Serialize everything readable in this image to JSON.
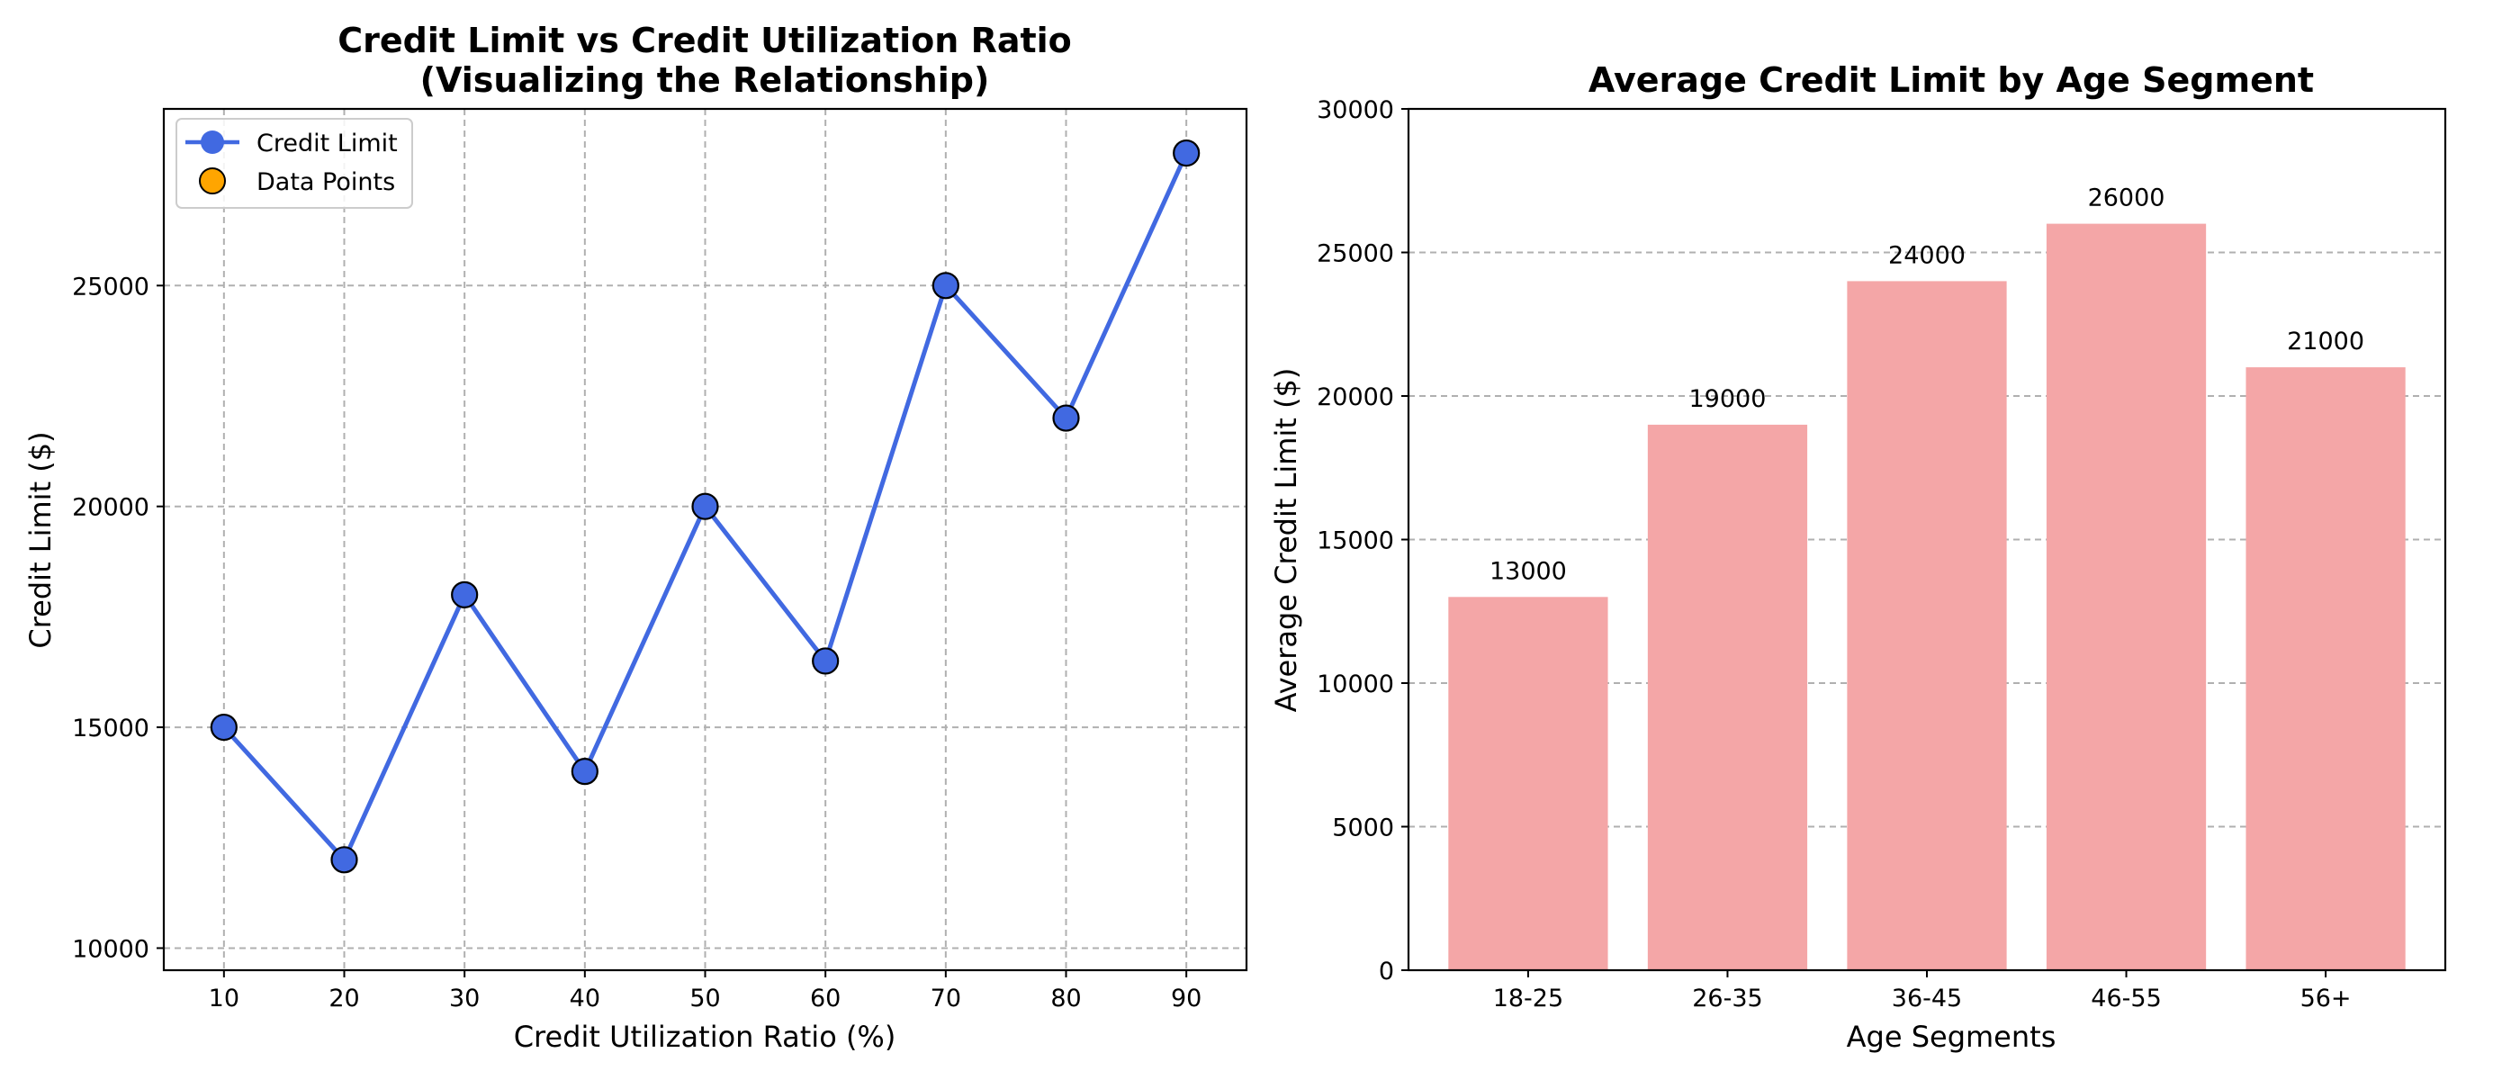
{
  "chart_data": [
    {
      "type": "line",
      "title_lines": [
        "Credit Limit vs Credit Utilization Ratio",
        "(Visualizing the Relationship)"
      ],
      "xlabel": "Credit Utilization Ratio (%)",
      "ylabel": "Credit Limit ($)",
      "x": [
        10,
        20,
        30,
        40,
        50,
        60,
        70,
        80,
        90
      ],
      "y": [
        15000,
        12000,
        18000,
        14000,
        20000,
        16500,
        25000,
        22000,
        28000
      ],
      "xlim": [
        5,
        95
      ],
      "ylim": [
        9500,
        29000
      ],
      "xticks": [
        10,
        20,
        30,
        40,
        50,
        60,
        70,
        80,
        90
      ],
      "yticks": [
        10000,
        15000,
        20000,
        25000
      ],
      "grid": true,
      "legend_position": "upper-left",
      "legend": [
        {
          "label": "Credit Limit",
          "kind": "line-marker",
          "color": "#4169e1"
        },
        {
          "label": "Data Points",
          "kind": "marker",
          "color": "#ffa500"
        }
      ],
      "line_color": "#4169e1",
      "marker_edge_color": "#000000"
    },
    {
      "type": "bar",
      "title": "Average Credit Limit by Age Segment",
      "xlabel": "Age Segments",
      "ylabel": "Average Credit Limit ($)",
      "categories": [
        "18-25",
        "26-35",
        "36-45",
        "46-55",
        "56+"
      ],
      "values": [
        13000,
        19000,
        24000,
        26000,
        21000
      ],
      "ylim": [
        0,
        30000
      ],
      "yticks": [
        0,
        5000,
        10000,
        15000,
        20000,
        25000,
        30000
      ],
      "grid": true,
      "bar_color": "#f4a6a7"
    }
  ]
}
